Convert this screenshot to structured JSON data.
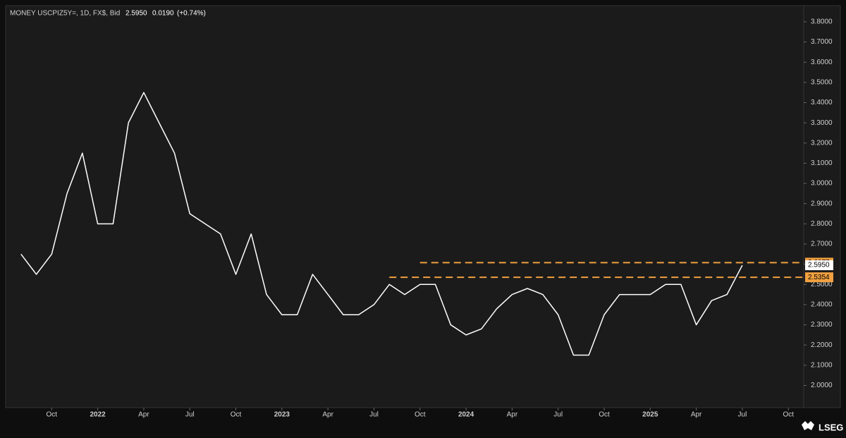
{
  "header": {
    "symbol": "MONEY USCPIZ5Y=, 1D, FX$, Bid",
    "price": "2.5950",
    "change": "0.0190",
    "change_pct": "(+0.74%)"
  },
  "logo": "LSEG",
  "chart_data": {
    "type": "line",
    "x": [
      "2021-08",
      "2021-09",
      "2021-10",
      "2021-11",
      "2021-12",
      "2022-01",
      "2022-02",
      "2022-03",
      "2022-04",
      "2022-05",
      "2022-06",
      "2022-07",
      "2022-08",
      "2022-09",
      "2022-10",
      "2022-11",
      "2022-12",
      "2023-01",
      "2023-02",
      "2023-03",
      "2023-04",
      "2023-05",
      "2023-06",
      "2023-07",
      "2023-08",
      "2023-09",
      "2023-10",
      "2023-11",
      "2023-12",
      "2024-01",
      "2024-02",
      "2024-03",
      "2024-04",
      "2024-05",
      "2024-06",
      "2024-07",
      "2024-08",
      "2024-09",
      "2024-10",
      "2024-11",
      "2024-12",
      "2025-01",
      "2025-02",
      "2025-03",
      "2025-04",
      "2025-05",
      "2025-06",
      "2025-07"
    ],
    "series": [
      {
        "color": "#ffffff",
        "values": [
          2.65,
          2.55,
          2.65,
          2.95,
          3.15,
          2.8,
          2.8,
          3.3,
          3.45,
          3.3,
          3.15,
          2.85,
          2.8,
          2.75,
          2.55,
          2.75,
          2.45,
          2.35,
          2.35,
          2.55,
          2.45,
          2.35,
          2.35,
          2.4,
          2.5,
          2.45,
          2.5,
          2.5,
          2.3,
          2.25,
          2.28,
          2.38,
          2.45,
          2.48,
          2.45,
          2.35,
          2.15,
          2.15,
          2.35,
          2.45,
          2.45,
          2.45,
          2.5,
          2.5,
          2.3,
          2.42,
          2.45,
          2.595
        ]
      }
    ],
    "xlim": [
      "2021-07",
      "2025-11"
    ],
    "xticks": [
      {
        "value": "2021-10",
        "label": "Oct"
      },
      {
        "value": "2022-01",
        "label": "2022"
      },
      {
        "value": "2022-04",
        "label": "Apr"
      },
      {
        "value": "2022-07",
        "label": "Jul"
      },
      {
        "value": "2022-10",
        "label": "Oct"
      },
      {
        "value": "2023-01",
        "label": "2023"
      },
      {
        "value": "2023-04",
        "label": "Apr"
      },
      {
        "value": "2023-07",
        "label": "Jul"
      },
      {
        "value": "2023-10",
        "label": "Oct"
      },
      {
        "value": "2024-01",
        "label": "2024"
      },
      {
        "value": "2024-04",
        "label": "Apr"
      },
      {
        "value": "2024-07",
        "label": "Jul"
      },
      {
        "value": "2024-10",
        "label": "Oct"
      },
      {
        "value": "2025-01",
        "label": "2025"
      },
      {
        "value": "2025-04",
        "label": "Apr"
      },
      {
        "value": "2025-07",
        "label": "Jul"
      },
      {
        "value": "2025-10",
        "label": "Oct"
      }
    ],
    "ylim": [
      1.89,
      3.88
    ],
    "yticks": [
      {
        "value": 2.0,
        "label": "2.0000"
      },
      {
        "value": 2.1,
        "label": "2.1000"
      },
      {
        "value": 2.2,
        "label": "2.2000"
      },
      {
        "value": 2.3,
        "label": "2.3000"
      },
      {
        "value": 2.4,
        "label": "2.4000"
      },
      {
        "value": 2.5,
        "label": "2.5000"
      },
      {
        "value": 2.6,
        "label": "2.6000"
      },
      {
        "value": 2.7,
        "label": "2.7000"
      },
      {
        "value": 2.8,
        "label": "2.8000"
      },
      {
        "value": 2.9,
        "label": "2.9000"
      },
      {
        "value": 3.0,
        "label": "3.0000"
      },
      {
        "value": 3.1,
        "label": "3.1000"
      },
      {
        "value": 3.2,
        "label": "3.2000"
      },
      {
        "value": 3.3,
        "label": "3.3000"
      },
      {
        "value": 3.4,
        "label": "3.4000"
      },
      {
        "value": 3.5,
        "label": "3.5000"
      },
      {
        "value": 3.6,
        "label": "3.6000"
      },
      {
        "value": 3.7,
        "label": "3.7000"
      },
      {
        "value": 3.8,
        "label": "3.8000"
      }
    ],
    "levels": [
      {
        "value": 2.6077,
        "label": "2.6077",
        "from": "2023-10",
        "color": "#f0a040"
      },
      {
        "value": 2.5354,
        "label": "2.5354",
        "from": "2023-08",
        "color": "#f0a040"
      }
    ],
    "last": {
      "value": 2.595,
      "label": "2.5950"
    }
  }
}
